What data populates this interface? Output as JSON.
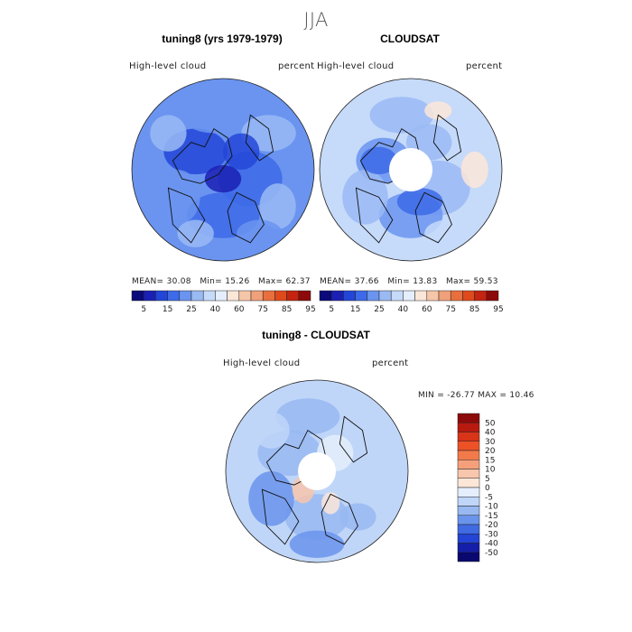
{
  "figure": {
    "season": "JJA",
    "panel1_title": "tuning8 (yrs 1979-1979)",
    "panel2_title": "CLOUDSAT",
    "diff_title": "tuning8 - CLOUDSAT"
  },
  "chart_data": [
    {
      "type": "heatmap",
      "title": "tuning8 (yrs 1979-1979)",
      "variable": "High-level cloud",
      "units": "percent",
      "projection": "north polar stereographic",
      "stats": {
        "mean_label": "MEAN=",
        "mean": "30.08",
        "min_label": "Min=",
        "min": "15.26",
        "max_label": "Max=",
        "max": "62.37"
      },
      "colorbar": {
        "ticks": [
          "5",
          "15",
          "25",
          "40",
          "60",
          "75",
          "85",
          "95"
        ],
        "colors": [
          "#0a0a7a",
          "#1a20b4",
          "#2346d8",
          "#3d6ae8",
          "#6a94f0",
          "#9abaf4",
          "#c6dafa",
          "#e4eefc",
          "#fbe6d8",
          "#f6c6a8",
          "#f0a07a",
          "#e9703e",
          "#df4a1c",
          "#c42410",
          "#8c0a0a"
        ]
      }
    },
    {
      "type": "heatmap",
      "title": "CLOUDSAT",
      "variable": "High-level cloud",
      "units": "percent",
      "projection": "north polar stereographic",
      "stats": {
        "mean_label": "MEAN=",
        "mean": "37.66",
        "min_label": "Min=",
        "min": "13.83",
        "max_label": "Max=",
        "max": "59.53"
      },
      "colorbar": {
        "ticks": [
          "5",
          "15",
          "25",
          "40",
          "60",
          "75",
          "85",
          "95"
        ],
        "colors": [
          "#0a0a7a",
          "#1a20b4",
          "#2346d8",
          "#3d6ae8",
          "#6a94f0",
          "#9abaf4",
          "#c6dafa",
          "#e4eefc",
          "#fbe6d8",
          "#f6c6a8",
          "#f0a07a",
          "#e9703e",
          "#df4a1c",
          "#c42410",
          "#8c0a0a"
        ]
      }
    },
    {
      "type": "heatmap",
      "title": "tuning8 - CLOUDSAT",
      "variable": "High-level cloud",
      "units": "percent",
      "projection": "north polar stereographic",
      "stats": {
        "min_label": "MIN =",
        "min": "-26.77",
        "max_label": "MAX =",
        "max": "10.46"
      },
      "colorbar": {
        "ticks": [
          "50",
          "40",
          "30",
          "20",
          "15",
          "10",
          "5",
          "0",
          "-5",
          "-10",
          "-15",
          "-20",
          "-30",
          "-40",
          "-50"
        ],
        "colors": [
          "#8c0a0a",
          "#b81a10",
          "#d83418",
          "#ec5226",
          "#f27a4a",
          "#f5a07a",
          "#f8c6ac",
          "#fce6d8",
          "#e4eefc",
          "#c0d6f8",
          "#98b8f2",
          "#6a94ec",
          "#3f6ae2",
          "#2344d4",
          "#141ea8",
          "#08086e"
        ]
      }
    }
  ]
}
